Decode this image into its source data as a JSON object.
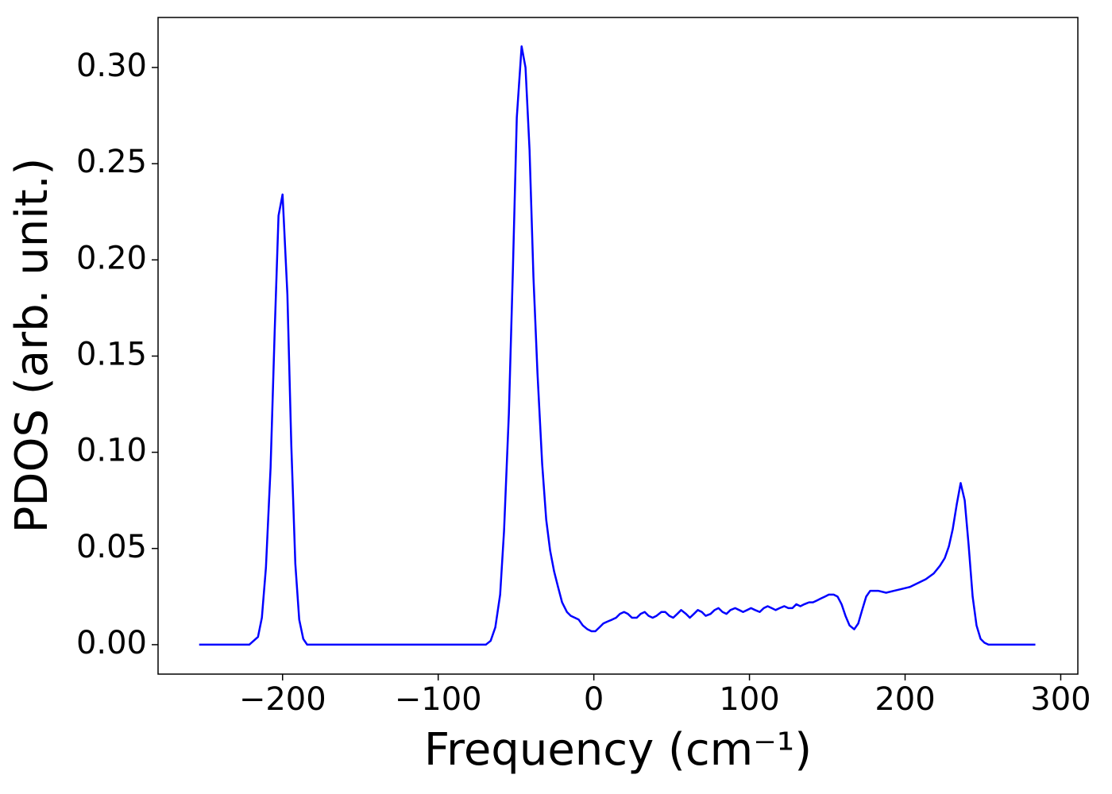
{
  "chart_data": {
    "type": "line",
    "xlabel": "Frequency (cm⁻¹)",
    "ylabel": "PDOS (arb. unit.)",
    "x": [
      -253.6,
      -221.4,
      -215.8,
      -213.3,
      -210.7,
      -207.7,
      -205.1,
      -202.6,
      -200.0,
      -196.9,
      -194.4,
      -191.8,
      -189.3,
      -186.7,
      -184.2,
      -181.6,
      -69.4,
      -66.3,
      -63.3,
      -60.2,
      -57.7,
      -54.6,
      -52.0,
      -49.5,
      -46.4,
      -43.9,
      -41.3,
      -38.8,
      -36.2,
      -33.2,
      -30.6,
      -28.1,
      -25.5,
      -23.0,
      -20.4,
      -17.3,
      -14.8,
      -12.2,
      -9.7,
      -7.1,
      -4.1,
      -1.5,
      1.0,
      3.6,
      6.1,
      8.7,
      11.7,
      14.3,
      16.8,
      19.4,
      21.9,
      24.5,
      27.6,
      30.1,
      32.7,
      35.2,
      37.8,
      40.3,
      43.4,
      45.9,
      48.5,
      51.0,
      53.6,
      56.1,
      59.2,
      61.7,
      64.3,
      66.8,
      69.4,
      71.9,
      75.0,
      77.6,
      80.1,
      82.7,
      85.2,
      87.8,
      90.8,
      93.4,
      95.9,
      98.5,
      101.0,
      103.6,
      106.6,
      109.2,
      111.7,
      114.3,
      116.8,
      119.4,
      122.4,
      125.0,
      127.6,
      130.1,
      132.7,
      135.2,
      138.3,
      140.8,
      143.4,
      145.9,
      148.5,
      151.0,
      154.1,
      156.6,
      159.2,
      161.7,
      164.3,
      167.3,
      169.9,
      172.4,
      175.0,
      177.6,
      180.1,
      182.7,
      187.8,
      192.9,
      198.0,
      203.1,
      208.2,
      213.3,
      218.4,
      222.4,
      225.5,
      228.1,
      230.6,
      233.2,
      235.7,
      238.3,
      240.8,
      243.4,
      245.9,
      248.5,
      251.0,
      253.6,
      283.7
    ],
    "series": [
      {
        "color": "#0000ff",
        "values": [
          0,
          0,
          0.004,
          0.014,
          0.04,
          0.092,
          0.162,
          0.223,
          0.234,
          0.182,
          0.104,
          0.042,
          0.013,
          0.003,
          0,
          0,
          0,
          0.002,
          0.009,
          0.026,
          0.059,
          0.12,
          0.195,
          0.274,
          0.311,
          0.3,
          0.257,
          0.191,
          0.141,
          0.094,
          0.065,
          0.049,
          0.038,
          0.03,
          0.022,
          0.017,
          0.015,
          0.014,
          0.013,
          0.01,
          0.008,
          0.007,
          0.007,
          0.009,
          0.011,
          0.012,
          0.013,
          0.014,
          0.016,
          0.017,
          0.016,
          0.014,
          0.014,
          0.016,
          0.017,
          0.015,
          0.014,
          0.015,
          0.017,
          0.017,
          0.015,
          0.014,
          0.016,
          0.018,
          0.016,
          0.014,
          0.016,
          0.018,
          0.017,
          0.015,
          0.016,
          0.018,
          0.019,
          0.017,
          0.016,
          0.018,
          0.019,
          0.018,
          0.017,
          0.018,
          0.019,
          0.018,
          0.017,
          0.019,
          0.02,
          0.019,
          0.018,
          0.019,
          0.02,
          0.019,
          0.019,
          0.021,
          0.02,
          0.021,
          0.022,
          0.022,
          0.023,
          0.024,
          0.025,
          0.026,
          0.026,
          0.025,
          0.021,
          0.015,
          0.01,
          0.008,
          0.011,
          0.018,
          0.025,
          0.028,
          0.028,
          0.028,
          0.027,
          0.028,
          0.029,
          0.03,
          0.032,
          0.034,
          0.037,
          0.041,
          0.045,
          0.051,
          0.06,
          0.073,
          0.084,
          0.075,
          0.052,
          0.025,
          0.01,
          0.003,
          0.001,
          0,
          0
        ]
      }
    ],
    "xlim": [
      -280,
      311
    ],
    "ylim": [
      -0.0153,
      0.326
    ],
    "xticks": [
      {
        "value": -200,
        "label": "−200"
      },
      {
        "value": -100,
        "label": "−100"
      },
      0,
      100,
      200,
      300
    ],
    "yticks": [
      {
        "value": 0,
        "label": "0.00"
      },
      {
        "value": 0.05,
        "label": "0.05"
      },
      {
        "value": 0.1,
        "label": "0.10"
      },
      {
        "value": 0.15,
        "label": "0.15"
      },
      {
        "value": 0.2,
        "label": "0.20"
      },
      {
        "value": 0.25,
        "label": "0.25"
      },
      {
        "value": 0.3,
        "label": "0.30"
      }
    ],
    "grid": false
  }
}
